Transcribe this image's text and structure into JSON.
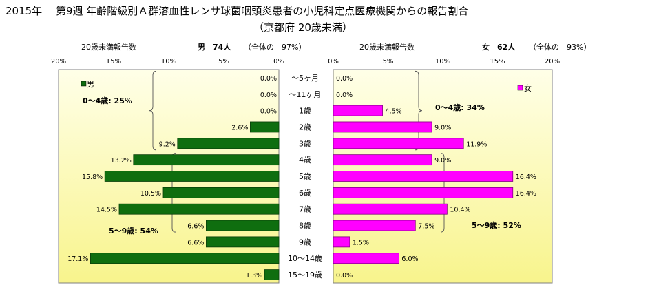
{
  "title": {
    "line1": "2015年　 第9週 年齢階級別Ａ群溶血性レンサ球菌咽頭炎患者の小児科定点医療機関からの報告割合",
    "line2": "（京都府 20歳未満）"
  },
  "colors": {
    "male": "#0f6e0f",
    "female": "#ff00ff",
    "plot_top": "#ffffe8",
    "plot_bottom": "#f8f48c"
  },
  "chart_data": {
    "type": "bar",
    "orientation": "horizontal",
    "layout": "population-pyramid",
    "categories": [
      "～5ヶ月",
      "～11ヶ月",
      "1歳",
      "2歳",
      "3歳",
      "4歳",
      "5歳",
      "6歳",
      "7歳",
      "8歳",
      "9歳",
      "10～14歳",
      "15～19歳"
    ],
    "xlim": [
      0,
      20
    ],
    "ticks": [
      "20%",
      "15%",
      "10%",
      "5%",
      "0%"
    ],
    "ticks_right": [
      "0%",
      "5%",
      "10%",
      "15%",
      "20%"
    ],
    "series": [
      {
        "name": "男",
        "side": "left",
        "header_left": "20歳未満報告数",
        "header_count": "男　74人",
        "header_total": "（全体の　97%）",
        "values": [
          0.0,
          0.0,
          0.0,
          2.6,
          9.2,
          13.2,
          15.8,
          10.5,
          14.5,
          6.6,
          6.6,
          17.1,
          1.3
        ],
        "labels": [
          "0.0%",
          "0.0%",
          "0.0%",
          "2.6%",
          "9.2%",
          "13.2%",
          "15.8%",
          "10.5%",
          "14.5%",
          "6.6%",
          "6.6%",
          "17.1%",
          "1.3%"
        ],
        "group_labels": [
          "0～4歳: 25%",
          "5～9歳: 54%"
        ]
      },
      {
        "name": "女",
        "side": "right",
        "header_left": "20歳未満報告数",
        "header_count": "女　62人",
        "header_total": "（全体の　93%）",
        "values": [
          0.0,
          0.0,
          4.5,
          9.0,
          11.9,
          9.0,
          16.4,
          16.4,
          10.4,
          7.5,
          1.5,
          6.0,
          0.0
        ],
        "labels": [
          "0.0%",
          "0.0%",
          "4.5%",
          "9.0%",
          "11.9%",
          "9.0%",
          "16.4%",
          "16.4%",
          "10.4%",
          "7.5%",
          "1.5%",
          "6.0%",
          "0.0%"
        ],
        "group_labels": [
          "0～4歳: 34%",
          "5～9歳: 52%"
        ]
      }
    ]
  }
}
